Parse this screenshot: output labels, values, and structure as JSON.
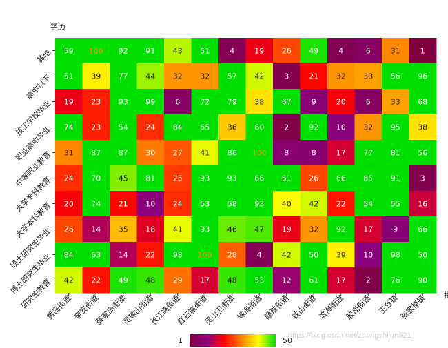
{
  "chart_data": {
    "type": "heatmap",
    "ylabel": "学历",
    "xlabel_visible": "拼",
    "x_categories": [
      "黄岛街道",
      "辛安街道",
      "薛家岛街道",
      "灵珠山街道",
      "长江路街道",
      "红石崖街道",
      "灵山卫街道",
      "珠海街道",
      "隐珠街道",
      "铁山街道",
      "滨海街道",
      "胶南街道",
      "王台镇",
      "张家楼镇"
    ],
    "y_categories": [
      "其他",
      "高中以下",
      "技工学校毕业",
      "职业高中毕业",
      "中等职业教育",
      "大学专科教育",
      "大学本科教育",
      "硕士研究生毕业",
      "博士研究生毕业",
      "研究生教育"
    ],
    "values": [
      [
        59,
        100,
        92,
        91,
        43,
        51,
        4,
        19,
        26,
        49,
        4,
        6,
        31,
        1
      ],
      [
        51,
        39,
        77,
        44,
        32,
        32,
        57,
        42,
        3,
        21,
        32,
        33,
        56,
        96
      ],
      [
        19,
        23,
        93,
        99,
        6,
        72,
        79,
        38,
        67,
        9,
        20,
        6,
        33,
        68
      ],
      [
        74,
        23,
        54,
        24,
        84,
        65,
        36,
        60,
        2,
        92,
        10,
        32,
        95,
        38
      ],
      [
        31,
        87,
        87,
        30,
        27,
        41,
        86,
        100,
        8,
        8,
        17,
        77,
        81,
        56
      ],
      [
        24,
        70,
        45,
        81,
        25,
        93,
        93,
        66,
        61,
        26,
        66,
        85,
        91,
        3
      ],
      [
        20,
        74,
        21,
        10,
        24,
        53,
        58,
        93,
        40,
        42,
        22,
        54,
        55,
        16
      ],
      [
        26,
        14,
        35,
        18,
        41,
        93,
        46,
        47,
        19,
        32,
        92,
        17,
        9,
        66
      ],
      [
        84,
        63,
        14,
        22,
        98,
        100,
        28,
        4,
        42,
        50,
        39,
        10,
        98,
        50
      ],
      [
        42,
        22,
        49,
        48,
        29,
        17,
        48,
        53,
        12,
        61,
        17,
        2,
        76,
        90
      ]
    ],
    "colorscale": {
      "min": 1,
      "max": 50,
      "min_label": "1",
      "max_label": "50",
      "stops": [
        "#800040",
        "#8b0080",
        "#ff0000",
        "#ff8000",
        "#ffff00",
        "#00e000"
      ]
    },
    "grid": false,
    "legend": "bottom-center",
    "watermark": "https://blog.csdn.net/zhongshijun521"
  }
}
